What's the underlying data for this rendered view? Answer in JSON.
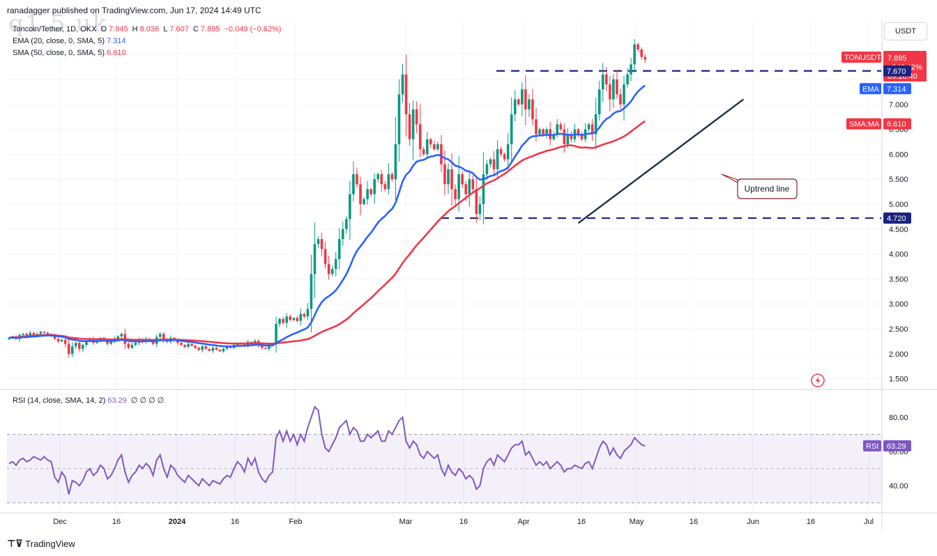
{
  "header": {
    "publisher": "ranadagger published on TradingView.com, Jun 17, 2024 14:49 UTC"
  },
  "watermark": "q1.5 uk",
  "legend": {
    "symbol": "Toncoin/Tether, 1D, OKX",
    "o_label": "O",
    "o": "7.945",
    "h_label": "H",
    "h": "8.036",
    "l_label": "L",
    "l": "7.607",
    "c_label": "C",
    "c": "7.895",
    "chg": "−0.049 (−0.62%)",
    "ema_label": "EMA (20, close, 0, SMA, 5)",
    "ema_val": "7.314",
    "sma_label": "SMA (50, close, 0, SMA, 5)",
    "sma_val": "6.610",
    "rsi_label": "RSI (14, close, SMA, 14, 2)",
    "rsi_val": "63.29",
    "rsi_nulls": "∅ ∅ ∅ ∅"
  },
  "currency_button": "USDT",
  "footer_logo": "TradingView",
  "colors": {
    "up": "#089981",
    "down": "#f23645",
    "ema": "#2962ff",
    "sma": "#f23645",
    "rsi": "#7e57c2",
    "levels": "#1a237e"
  },
  "chart_data": {
    "type": "candlestick",
    "price_axis": {
      "ticks": [
        "1.500",
        "2.000",
        "2.500",
        "3.000",
        "3.500",
        "4.000",
        "4.500",
        "5.000",
        "5.500",
        "6.000",
        "6.500",
        "7.000",
        "7.500",
        "8.000"
      ],
      "range": [
        1.3,
        8.7
      ]
    },
    "x_axis": {
      "ticks": [
        "Dec",
        "16",
        "2024",
        "16",
        "Feb",
        "Mar",
        "16",
        "Apr",
        "16",
        "May",
        "16",
        "Jun",
        "16",
        "Jul"
      ]
    },
    "horizontal_levels": [
      {
        "value": 7.67,
        "label": "7.670"
      },
      {
        "value": 4.72,
        "label": "4.720"
      }
    ],
    "badges": {
      "last": {
        "symbol": "TONUSDT",
        "price": "7.895",
        "change": "+246.42%",
        "countdown": "09:10:40"
      },
      "ema": {
        "name": "EMA",
        "value": "7.314"
      },
      "sma": {
        "name": "SMA:MA",
        "value": "6.610"
      },
      "rsi": {
        "name": "RSI",
        "value": "63.29"
      }
    },
    "annotation": "Uptrend line",
    "trendline": {
      "from": {
        "date": "2024-05-01",
        "value": 4.62
      },
      "to": {
        "date": "2024-06-17",
        "value": 7.1
      }
    },
    "rsi": {
      "ticks": [
        "40.00",
        "60.00",
        "80.00"
      ],
      "range": [
        25,
        95
      ],
      "upper_band": 70,
      "lower_band": 30,
      "mid": 50
    },
    "series_start_date": "2023-11-21",
    "closes": [
      2.32,
      2.35,
      2.3,
      2.38,
      2.4,
      2.35,
      2.42,
      2.38,
      2.4,
      2.44,
      2.42,
      2.4,
      2.36,
      2.3,
      2.25,
      2.28,
      2.2,
      2.0,
      2.15,
      2.22,
      2.1,
      2.18,
      2.25,
      2.3,
      2.22,
      2.26,
      2.32,
      2.28,
      2.2,
      2.24,
      2.3,
      2.35,
      2.4,
      2.2,
      2.12,
      2.18,
      2.22,
      2.28,
      2.24,
      2.3,
      2.26,
      2.2,
      2.34,
      2.4,
      2.3,
      2.24,
      2.32,
      2.28,
      2.22,
      2.18,
      2.14,
      2.2,
      2.16,
      2.12,
      2.08,
      2.15,
      2.1,
      2.06,
      2.12,
      2.08,
      2.05,
      2.1,
      2.14,
      2.12,
      2.18,
      2.22,
      2.2,
      2.16,
      2.24,
      2.2,
      2.26,
      2.18,
      2.12,
      2.1,
      2.16,
      2.2,
      2.6,
      2.7,
      2.62,
      2.75,
      2.68,
      2.72,
      2.66,
      2.8,
      2.75,
      2.9,
      3.6,
      4.2,
      4.3,
      4.1,
      3.8,
      3.6,
      3.7,
      3.9,
      4.3,
      4.5,
      4.7,
      5.2,
      5.6,
      5.4,
      5.0,
      5.1,
      5.3,
      5.2,
      5.5,
      5.6,
      5.4,
      5.3,
      5.6,
      5.5,
      6.2,
      7.2,
      7.6,
      6.8,
      6.3,
      6.9,
      6.6,
      6.1,
      6.0,
      6.3,
      6.2,
      6.1,
      6.2,
      5.8,
      5.4,
      5.7,
      5.3,
      5.1,
      5.6,
      5.4,
      5.2,
      5.5,
      5.3,
      4.8,
      5.0,
      5.6,
      5.8,
      5.9,
      5.7,
      6.1,
      6.0,
      5.9,
      6.2,
      6.8,
      7.1,
      7.0,
      7.3,
      6.9,
      7.1,
      6.7,
      6.4,
      6.5,
      6.4,
      6.5,
      6.3,
      6.4,
      6.6,
      6.5,
      6.2,
      6.4,
      6.3,
      6.5,
      6.4,
      6.3,
      6.5,
      6.6,
      6.4,
      6.8,
      7.3,
      7.6,
      7.4,
      7.1,
      7.5,
      7.2,
      7.0,
      7.4,
      7.6,
      7.8,
      8.2,
      8.1,
      7.95,
      7.895
    ],
    "rsi_values": [
      53,
      54,
      52,
      55,
      56,
      54,
      55,
      57,
      56,
      55,
      57,
      55,
      54,
      45,
      42,
      48,
      45,
      35,
      43,
      42,
      40,
      43,
      48,
      50,
      46,
      48,
      52,
      50,
      44,
      46,
      50,
      55,
      58,
      48,
      42,
      46,
      48,
      52,
      50,
      53,
      51,
      46,
      55,
      58,
      50,
      45,
      52,
      50,
      46,
      44,
      42,
      46,
      44,
      42,
      40,
      44,
      42,
      40,
      43,
      42,
      41,
      44,
      46,
      45,
      50,
      54,
      52,
      48,
      56,
      52,
      56,
      48,
      44,
      42,
      46,
      48,
      68,
      72,
      66,
      72,
      66,
      70,
      64,
      70,
      66,
      74,
      80,
      86,
      84,
      70,
      62,
      60,
      64,
      68,
      74,
      76,
      78,
      70,
      74,
      72,
      66,
      66,
      70,
      68,
      70,
      72,
      66,
      66,
      72,
      70,
      74,
      78,
      80,
      66,
      62,
      66,
      64,
      58,
      56,
      60,
      58,
      56,
      58,
      50,
      46,
      52,
      48,
      46,
      50,
      48,
      44,
      46,
      44,
      38,
      40,
      50,
      54,
      56,
      52,
      58,
      56,
      54,
      58,
      62,
      64,
      64,
      66,
      58,
      60,
      56,
      52,
      54,
      52,
      54,
      50,
      52,
      54,
      52,
      48,
      50,
      50,
      52,
      51,
      50,
      53,
      54,
      50,
      56,
      62,
      66,
      64,
      58,
      62,
      58,
      56,
      60,
      62,
      64,
      68,
      66,
      64,
      63.29
    ]
  }
}
